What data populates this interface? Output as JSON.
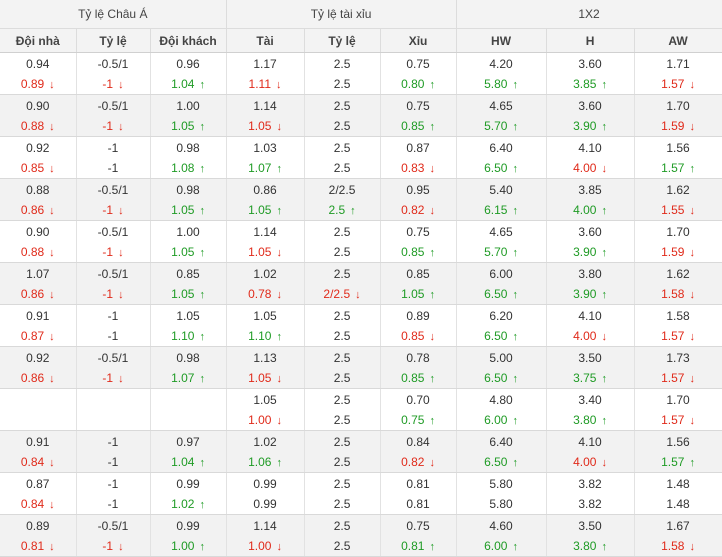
{
  "headers": {
    "groups": [
      "Tỷ lệ Châu Á",
      "Tỷ lệ tài xỉu",
      "1X2"
    ],
    "columns": [
      "Đội nhà",
      "Tỷ lệ",
      "Đội khách",
      "Tài",
      "Tỷ lệ",
      "Xỉu",
      "HW",
      "H",
      "AW"
    ]
  },
  "colors": {
    "up": "#1f9b25",
    "down": "#e02a1a",
    "alt_row": "#f2f2f2"
  },
  "icons": {
    "up": "arrow-up-icon",
    "down": "arrow-down-icon"
  },
  "rows": [
    {
      "open": [
        "0.94",
        "-0.5/1",
        "0.96",
        "1.17",
        "2.5",
        "0.75",
        "4.20",
        "3.60",
        "1.71"
      ],
      "live": [
        "0.89",
        "-1",
        "1.04",
        "1.11",
        "2.5",
        "0.80",
        "5.80",
        "3.85",
        "1.57"
      ],
      "trend": [
        "d",
        "d",
        "u",
        "d",
        "",
        "u",
        "u",
        "u",
        "d"
      ]
    },
    {
      "open": [
        "0.90",
        "-0.5/1",
        "1.00",
        "1.14",
        "2.5",
        "0.75",
        "4.65",
        "3.60",
        "1.70"
      ],
      "live": [
        "0.88",
        "-1",
        "1.05",
        "1.05",
        "2.5",
        "0.85",
        "5.70",
        "3.90",
        "1.59"
      ],
      "trend": [
        "d",
        "d",
        "u",
        "d",
        "",
        "u",
        "u",
        "u",
        "d"
      ]
    },
    {
      "open": [
        "0.92",
        "-1",
        "0.98",
        "1.03",
        "2.5",
        "0.87",
        "6.40",
        "4.10",
        "1.56"
      ],
      "live": [
        "0.85",
        "-1",
        "1.08",
        "1.07",
        "2.5",
        "0.83",
        "6.50",
        "4.00",
        "1.57"
      ],
      "trend": [
        "d",
        "",
        "u",
        "u",
        "",
        "d",
        "u",
        "d",
        "u"
      ]
    },
    {
      "open": [
        "0.88",
        "-0.5/1",
        "0.98",
        "0.86",
        "2/2.5",
        "0.95",
        "5.40",
        "3.85",
        "1.62"
      ],
      "live": [
        "0.86",
        "-1",
        "1.05",
        "1.05",
        "2.5",
        "0.82",
        "6.15",
        "4.00",
        "1.55"
      ],
      "trend": [
        "d",
        "d",
        "u",
        "u",
        "u",
        "d",
        "u",
        "u",
        "d"
      ]
    },
    {
      "open": [
        "0.90",
        "-0.5/1",
        "1.00",
        "1.14",
        "2.5",
        "0.75",
        "4.65",
        "3.60",
        "1.70"
      ],
      "live": [
        "0.88",
        "-1",
        "1.05",
        "1.05",
        "2.5",
        "0.85",
        "5.70",
        "3.90",
        "1.59"
      ],
      "trend": [
        "d",
        "d",
        "u",
        "d",
        "",
        "u",
        "u",
        "u",
        "d"
      ]
    },
    {
      "open": [
        "1.07",
        "-0.5/1",
        "0.85",
        "1.02",
        "2.5",
        "0.85",
        "6.00",
        "3.80",
        "1.62"
      ],
      "live": [
        "0.86",
        "-1",
        "1.05",
        "0.78",
        "2/2.5",
        "1.05",
        "6.50",
        "3.90",
        "1.58"
      ],
      "trend": [
        "d",
        "d",
        "u",
        "d",
        "d",
        "u",
        "u",
        "u",
        "d"
      ]
    },
    {
      "open": [
        "0.91",
        "-1",
        "1.05",
        "1.05",
        "2.5",
        "0.89",
        "6.20",
        "4.10",
        "1.58"
      ],
      "live": [
        "0.87",
        "-1",
        "1.10",
        "1.10",
        "2.5",
        "0.85",
        "6.50",
        "4.00",
        "1.57"
      ],
      "trend": [
        "d",
        "",
        "u",
        "u",
        "",
        "d",
        "u",
        "d",
        "d"
      ]
    },
    {
      "open": [
        "0.92",
        "-0.5/1",
        "0.98",
        "1.13",
        "2.5",
        "0.78",
        "5.00",
        "3.50",
        "1.73"
      ],
      "live": [
        "0.86",
        "-1",
        "1.07",
        "1.05",
        "2.5",
        "0.85",
        "6.50",
        "3.75",
        "1.57"
      ],
      "trend": [
        "d",
        "d",
        "u",
        "d",
        "",
        "u",
        "u",
        "u",
        "d"
      ]
    },
    {
      "open": [
        "",
        "",
        "",
        "1.05",
        "2.5",
        "0.70",
        "4.80",
        "3.40",
        "1.70"
      ],
      "live": [
        "",
        "",
        "",
        "1.00",
        "2.5",
        "0.75",
        "6.00",
        "3.80",
        "1.57"
      ],
      "trend": [
        "",
        "",
        "",
        "d",
        "",
        "u",
        "u",
        "u",
        "d"
      ]
    },
    {
      "open": [
        "0.91",
        "-1",
        "0.97",
        "1.02",
        "2.5",
        "0.84",
        "6.40",
        "4.10",
        "1.56"
      ],
      "live": [
        "0.84",
        "-1",
        "1.04",
        "1.06",
        "2.5",
        "0.82",
        "6.50",
        "4.00",
        "1.57"
      ],
      "trend": [
        "d",
        "",
        "u",
        "u",
        "",
        "d",
        "u",
        "d",
        "u"
      ]
    },
    {
      "open": [
        "0.87",
        "-1",
        "0.99",
        "0.99",
        "2.5",
        "0.81",
        "5.80",
        "3.82",
        "1.48"
      ],
      "live": [
        "0.84",
        "-1",
        "1.02",
        "0.99",
        "2.5",
        "0.81",
        "5.80",
        "3.82",
        "1.48"
      ],
      "trend": [
        "d",
        "",
        "u",
        "",
        "",
        "",
        "",
        "",
        ""
      ]
    },
    {
      "open": [
        "0.89",
        "-0.5/1",
        "0.99",
        "1.14",
        "2.5",
        "0.75",
        "4.60",
        "3.50",
        "1.67"
      ],
      "live": [
        "0.81",
        "-1",
        "1.00",
        "1.00",
        "2.5",
        "0.81",
        "6.00",
        "3.80",
        "1.58"
      ],
      "trend": [
        "d",
        "d",
        "u",
        "d",
        "",
        "u",
        "u",
        "u",
        "d"
      ]
    }
  ]
}
